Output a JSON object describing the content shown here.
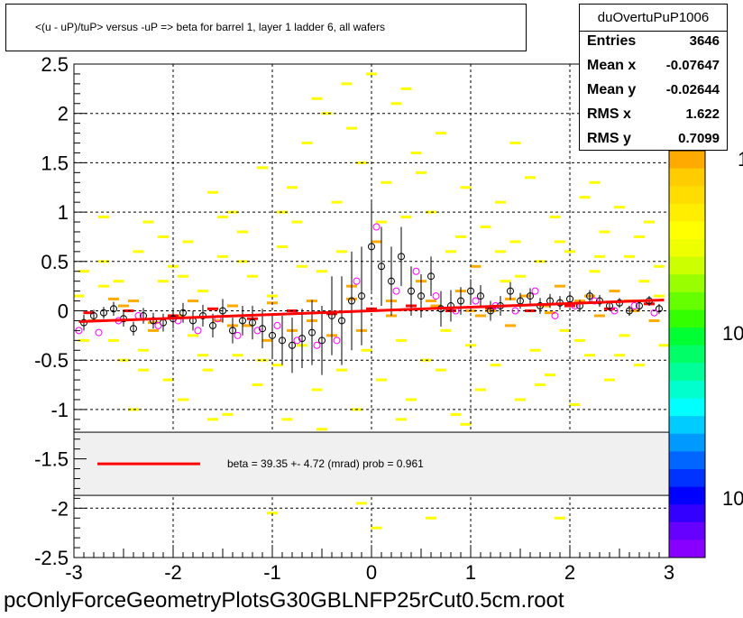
{
  "title": "<(u - uP)/tuP> versus  -uP => beta for barrel 1, layer 1 ladder 6, all wafers",
  "footer": "pcOnlyForceGeometryPlotsG30GBLNFP25rCut0.5cm.root",
  "stats": {
    "name": "duOvertuPuP1006",
    "rows": [
      {
        "label": "Entries",
        "value": "3646"
      },
      {
        "label": "Mean x",
        "value": "-0.07647"
      },
      {
        "label": "Mean y",
        "value": "-0.02644"
      },
      {
        "label": "RMS x",
        "value": "1.622"
      },
      {
        "label": "RMS y",
        "value": "0.7099"
      }
    ]
  },
  "palette_labels": [
    "1",
    "10",
    "10"
  ],
  "colors": {
    "fit_line": "#ff0000",
    "profile_black": "#000000",
    "profile_magenta": "#ff00ff",
    "cell_yellow": "#ffff00",
    "cell_orange": "#ffaa00",
    "cell_red": "#ff0000",
    "legend_bg": "#f0f0f0"
  },
  "chart_data": {
    "type": "scatter",
    "description_kind": "2D histogram with profile points and linear fit",
    "xlim": [
      -3,
      3
    ],
    "ylim": [
      -2.5,
      2.5
    ],
    "x_ticks": [
      -3,
      -2,
      -1,
      0,
      1,
      2,
      3
    ],
    "y_ticks": [
      -2.5,
      -2,
      -1.5,
      -1,
      -0.5,
      0,
      0.5,
      1,
      1.5,
      2,
      2.5
    ],
    "x_tick_labels": [
      "-3",
      "-2",
      "-1",
      "0",
      "1",
      "2",
      "3"
    ],
    "y_tick_labels": [
      "-2.5",
      "-2",
      "-1.5",
      "-1",
      "-0.5",
      "0",
      "0.5",
      "1",
      "1.5",
      "2",
      "2.5"
    ],
    "grid": true,
    "fit": {
      "x": [
        -2.95,
        2.95
      ],
      "y": [
        -0.11,
        0.11
      ]
    },
    "legend": {
      "text": "beta =    39.35 +-   4.72 (mrad) prob = 0.961",
      "y_range": [
        -1.87,
        -1.23
      ]
    },
    "profile_black": {
      "x": [
        -2.9,
        -2.8,
        -2.7,
        -2.6,
        -2.5,
        -2.4,
        -2.3,
        -2.2,
        -2.1,
        -2.0,
        -1.9,
        -1.8,
        -1.7,
        -1.6,
        -1.5,
        -1.4,
        -1.3,
        -1.2,
        -1.1,
        -1.0,
        -0.9,
        -0.8,
        -0.7,
        -0.6,
        -0.5,
        -0.4,
        -0.3,
        -0.2,
        -0.1,
        0.0,
        0.1,
        0.2,
        0.3,
        0.4,
        0.5,
        0.6,
        0.7,
        0.8,
        0.9,
        1.0,
        1.1,
        1.2,
        1.3,
        1.4,
        1.5,
        1.6,
        1.7,
        1.8,
        1.9,
        2.0,
        2.1,
        2.2,
        2.3,
        2.4,
        2.5,
        2.6,
        2.7,
        2.8,
        2.9
      ],
      "y": [
        -0.12,
        -0.05,
        -0.02,
        0.02,
        -0.08,
        -0.18,
        -0.05,
        -0.1,
        -0.12,
        -0.08,
        -0.02,
        -0.1,
        -0.05,
        -0.15,
        0.0,
        -0.2,
        -0.1,
        -0.12,
        -0.18,
        -0.25,
        -0.3,
        -0.35,
        -0.28,
        -0.22,
        -0.3,
        -0.05,
        -0.1,
        0.1,
        0.15,
        0.65,
        0.45,
        0.3,
        0.55,
        0.2,
        0.15,
        0.35,
        0.02,
        0.05,
        0.1,
        0.2,
        0.15,
        0.0,
        0.05,
        0.2,
        0.1,
        0.15,
        0.05,
        0.1,
        0.08,
        0.12,
        0.05,
        0.15,
        0.1,
        0.05,
        0.08,
        0.0,
        0.05,
        0.1,
        0.02
      ],
      "err": [
        0.08,
        0.06,
        0.06,
        0.07,
        0.08,
        0.07,
        0.08,
        0.08,
        0.09,
        0.1,
        0.1,
        0.1,
        0.11,
        0.12,
        0.12,
        0.13,
        0.15,
        0.17,
        0.2,
        0.22,
        0.25,
        0.28,
        0.3,
        0.33,
        0.35,
        0.4,
        0.45,
        0.5,
        0.5,
        0.45,
        0.4,
        0.35,
        0.3,
        0.25,
        0.22,
        0.2,
        0.18,
        0.16,
        0.14,
        0.12,
        0.11,
        0.1,
        0.1,
        0.09,
        0.08,
        0.08,
        0.08,
        0.07,
        0.07,
        0.06,
        0.06,
        0.06,
        0.06,
        0.05,
        0.05,
        0.05,
        0.05,
        0.05,
        0.05
      ]
    },
    "profile_magenta": {
      "x": [
        -2.95,
        -2.75,
        -2.55,
        -2.35,
        -2.15,
        -1.95,
        -1.75,
        -1.55,
        -1.35,
        -1.15,
        -0.95,
        -0.75,
        -0.55,
        -0.35,
        -0.15,
        0.05,
        0.25,
        0.45,
        0.65,
        0.85,
        1.05,
        1.25,
        1.45,
        1.65,
        1.85,
        2.05,
        2.25,
        2.45,
        2.65,
        2.85
      ],
      "y": [
        -0.2,
        -0.22,
        -0.1,
        -0.05,
        -0.15,
        -0.1,
        -0.2,
        -0.08,
        -0.25,
        -0.2,
        -0.15,
        -0.3,
        -0.35,
        -0.3,
        0.3,
        0.85,
        0.2,
        0.4,
        0.15,
        0.0,
        0.1,
        0.05,
        0.0,
        0.2,
        -0.05,
        0.05,
        0.1,
        0.0,
        0.05,
        -0.02
      ]
    },
    "histogram_cells": [
      [
        -2.95,
        0.15,
        1
      ],
      [
        -2.9,
        0.4,
        1
      ],
      [
        -2.8,
        -0.1,
        2
      ],
      [
        -2.7,
        0.5,
        1
      ],
      [
        -2.6,
        -0.3,
        1
      ],
      [
        -2.55,
        0.3,
        1
      ],
      [
        -2.5,
        -0.5,
        1
      ],
      [
        -2.4,
        0.1,
        2
      ],
      [
        -2.35,
        0.6,
        1
      ],
      [
        -2.3,
        -0.4,
        1
      ],
      [
        -2.25,
        0.9,
        1
      ],
      [
        -2.2,
        -0.2,
        2
      ],
      [
        -2.1,
        0.3,
        1
      ],
      [
        -2.05,
        -0.7,
        1
      ],
      [
        -2.0,
        0.45,
        1
      ],
      [
        -1.95,
        -0.05,
        2
      ],
      [
        -1.9,
        -0.9,
        1
      ],
      [
        -1.85,
        0.7,
        1
      ],
      [
        -1.8,
        -0.25,
        1
      ],
      [
        -1.7,
        0.2,
        1
      ],
      [
        -1.65,
        -0.6,
        1
      ],
      [
        -1.6,
        1.2,
        1
      ],
      [
        -1.55,
        -0.1,
        2
      ],
      [
        -1.5,
        0.55,
        1
      ],
      [
        -1.45,
        -1.05,
        1
      ],
      [
        -1.4,
        0.05,
        2
      ],
      [
        -1.35,
        -0.45,
        1
      ],
      [
        -1.3,
        0.8,
        1
      ],
      [
        -1.25,
        -0.15,
        2
      ],
      [
        -1.2,
        0.35,
        1
      ],
      [
        -1.15,
        -0.75,
        1
      ],
      [
        -1.1,
        1.45,
        1
      ],
      [
        -1.05,
        -0.3,
        2
      ],
      [
        -1.0,
        0.15,
        1
      ],
      [
        -0.95,
        -0.55,
        1
      ],
      [
        -0.9,
        0.65,
        1
      ],
      [
        -0.85,
        -1.1,
        1
      ],
      [
        -0.8,
        -0.2,
        2
      ],
      [
        -0.75,
        0.9,
        1
      ],
      [
        -0.7,
        -0.35,
        1
      ],
      [
        -0.65,
        1.7,
        1
      ],
      [
        -0.6,
        0.1,
        2
      ],
      [
        -0.55,
        -0.8,
        1
      ],
      [
        -0.5,
        0.4,
        1
      ],
      [
        -0.45,
        2.0,
        1
      ],
      [
        -0.4,
        -0.25,
        2
      ],
      [
        -0.35,
        1.1,
        1
      ],
      [
        -0.3,
        -0.6,
        1
      ],
      [
        -0.25,
        2.3,
        1
      ],
      [
        -0.2,
        0.25,
        2
      ],
      [
        -0.15,
        -1.0,
        1
      ],
      [
        -0.1,
        1.5,
        1
      ],
      [
        -0.05,
        -0.4,
        1
      ],
      [
        0.0,
        2.4,
        1
      ],
      [
        0.05,
        0.7,
        2
      ],
      [
        0.1,
        -0.7,
        1
      ],
      [
        0.15,
        1.3,
        1
      ],
      [
        0.2,
        0.1,
        2
      ],
      [
        0.25,
        2.1,
        1
      ],
      [
        0.3,
        -0.3,
        1
      ],
      [
        0.35,
        0.95,
        1
      ],
      [
        0.4,
        -0.9,
        1
      ],
      [
        0.45,
        1.6,
        1
      ],
      [
        0.5,
        0.3,
        2
      ],
      [
        0.55,
        -0.5,
        1
      ],
      [
        0.6,
        1.0,
        1
      ],
      [
        0.65,
        0.05,
        2
      ],
      [
        0.7,
        1.8,
        1
      ],
      [
        0.75,
        -0.2,
        1
      ],
      [
        0.8,
        0.6,
        1
      ],
      [
        0.85,
        -1.05,
        1
      ],
      [
        0.9,
        0.2,
        2
      ],
      [
        0.95,
        1.25,
        1
      ],
      [
        1.0,
        -0.35,
        1
      ],
      [
        1.05,
        0.45,
        2
      ],
      [
        1.1,
        -0.8,
        1
      ],
      [
        1.15,
        0.85,
        1
      ],
      [
        1.2,
        0.0,
        2
      ],
      [
        1.25,
        -0.55,
        1
      ],
      [
        1.3,
        1.1,
        1
      ],
      [
        1.35,
        0.3,
        1
      ],
      [
        1.4,
        -0.15,
        2
      ],
      [
        1.45,
        0.7,
        1
      ],
      [
        1.5,
        -0.9,
        1
      ],
      [
        1.55,
        0.15,
        2
      ],
      [
        1.6,
        1.35,
        1
      ],
      [
        1.65,
        -0.4,
        1
      ],
      [
        1.7,
        0.5,
        1
      ],
      [
        1.75,
        0.05,
        2
      ],
      [
        1.8,
        -0.65,
        1
      ],
      [
        1.85,
        0.95,
        1
      ],
      [
        1.9,
        0.25,
        2
      ],
      [
        1.95,
        -0.2,
        1
      ],
      [
        2.0,
        0.6,
        1
      ],
      [
        2.05,
        -0.95,
        1
      ],
      [
        2.1,
        0.1,
        2
      ],
      [
        2.15,
        1.15,
        1
      ],
      [
        2.2,
        -0.45,
        1
      ],
      [
        2.25,
        0.4,
        1
      ],
      [
        2.3,
        -0.05,
        2
      ],
      [
        2.35,
        0.8,
        1
      ],
      [
        2.4,
        -0.7,
        1
      ],
      [
        2.45,
        0.2,
        2
      ],
      [
        2.5,
        1.05,
        1
      ],
      [
        2.55,
        -0.25,
        1
      ],
      [
        2.6,
        0.55,
        1
      ],
      [
        2.65,
        0.0,
        2
      ],
      [
        2.7,
        -0.55,
        1
      ],
      [
        2.75,
        0.3,
        1
      ],
      [
        2.8,
        0.9,
        1
      ],
      [
        2.85,
        -0.1,
        2
      ],
      [
        2.9,
        0.45,
        1
      ],
      [
        2.95,
        -0.35,
        1
      ],
      [
        -2.85,
        -0.02,
        3
      ],
      [
        -2.45,
        0.0,
        3
      ],
      [
        -2.0,
        -0.05,
        3
      ],
      [
        -1.6,
        0.02,
        3
      ],
      [
        -1.2,
        -0.08,
        3
      ],
      [
        -0.8,
        0.0,
        3
      ],
      [
        -0.4,
        -0.03,
        3
      ],
      [
        0.0,
        0.02,
        3
      ],
      [
        0.4,
        0.05,
        3
      ],
      [
        0.8,
        0.0,
        3
      ],
      [
        1.2,
        0.03,
        3
      ],
      [
        1.6,
        0.0,
        3
      ],
      [
        2.0,
        0.05,
        3
      ],
      [
        2.4,
        0.02,
        3
      ],
      [
        2.8,
        0.07,
        3
      ],
      [
        -2.6,
        0.12,
        2
      ],
      [
        -2.2,
        -0.12,
        2
      ],
      [
        -1.8,
        0.1,
        2
      ],
      [
        -1.4,
        -0.15,
        2
      ],
      [
        -1.0,
        0.08,
        2
      ],
      [
        -0.6,
        -0.1,
        2
      ],
      [
        -0.2,
        0.12,
        2
      ],
      [
        0.2,
        -0.05,
        2
      ],
      [
        0.6,
        0.1,
        2
      ],
      [
        1.0,
        0.0,
        2
      ],
      [
        1.4,
        0.12,
        2
      ],
      [
        1.8,
        -0.02,
        2
      ],
      [
        2.2,
        0.15,
        2
      ],
      [
        2.6,
        0.1,
        2
      ],
      [
        -2.9,
        -0.3,
        1
      ],
      [
        -2.7,
        0.25,
        1
      ],
      [
        -2.5,
        0.05,
        2
      ],
      [
        -2.3,
        -0.6,
        1
      ],
      [
        -2.1,
        0.75,
        1
      ],
      [
        -1.9,
        0.35,
        1
      ],
      [
        -1.7,
        -0.45,
        1
      ],
      [
        -1.5,
        0.95,
        1
      ],
      [
        -1.3,
        0.5,
        1
      ],
      [
        -1.1,
        -0.5,
        1
      ],
      [
        -0.9,
        1.0,
        1
      ],
      [
        -0.7,
        0.45,
        1
      ],
      [
        -0.5,
        -1.2,
        1
      ],
      [
        -0.3,
        0.6,
        1
      ],
      [
        -0.1,
        -0.2,
        2
      ],
      [
        0.1,
        0.9,
        1
      ],
      [
        0.3,
        -1.1,
        1
      ],
      [
        0.5,
        1.4,
        1
      ],
      [
        0.7,
        -0.6,
        1
      ],
      [
        0.9,
        0.75,
        1
      ],
      [
        1.1,
        -0.05,
        2
      ],
      [
        1.3,
        0.6,
        1
      ],
      [
        1.5,
        0.35,
        1
      ],
      [
        1.7,
        -0.75,
        1
      ],
      [
        1.9,
        0.7,
        1
      ],
      [
        2.1,
        -0.3,
        1
      ],
      [
        2.3,
        0.55,
        1
      ],
      [
        2.5,
        -0.45,
        1
      ],
      [
        2.7,
        0.75,
        1
      ],
      [
        2.9,
        0.15,
        1
      ],
      [
        -2.4,
        -1.0,
        1
      ],
      [
        -1.6,
        -1.1,
        1
      ],
      [
        -0.8,
        1.25,
        1
      ],
      [
        0.05,
        -2.2,
        1
      ],
      [
        -0.1,
        -1.95,
        1
      ],
      [
        0.6,
        -2.1,
        1
      ],
      [
        -1.0,
        -2.05,
        1
      ],
      [
        1.9,
        -2.1,
        1
      ],
      [
        -0.2,
        1.85,
        1
      ],
      [
        0.35,
        2.25,
        1
      ],
      [
        -0.55,
        2.15,
        1
      ],
      [
        1.45,
        1.7,
        1
      ],
      [
        -1.4,
        1.0,
        1
      ],
      [
        2.25,
        1.3,
        1
      ],
      [
        -2.7,
        0.95,
        1
      ],
      [
        0.95,
        -1.15,
        1
      ]
    ]
  }
}
